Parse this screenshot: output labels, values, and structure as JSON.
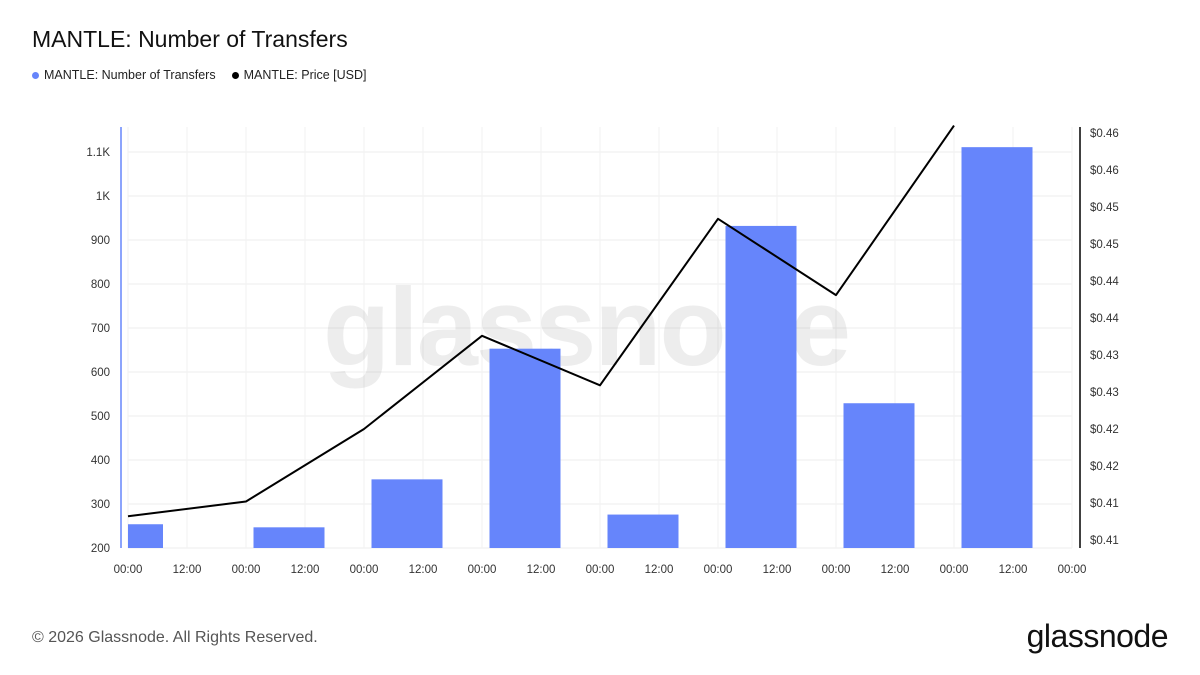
{
  "header": {
    "title": "MANTLE: Number of Transfers"
  },
  "legend": [
    {
      "label": "MANTLE: Number of Transfers",
      "color": "#6685fb"
    },
    {
      "label": "MANTLE: Price [USD]",
      "color": "#000000"
    }
  ],
  "watermark": "glassnode",
  "footer": {
    "copyright": "© 2026 Glassnode. All Rights Reserved.",
    "logo": "glassnode"
  },
  "chart_data": {
    "type": "bar",
    "title": "MANTLE: Number of Transfers",
    "x_tick_labels": [
      "00:00",
      "12:00",
      "00:00",
      "12:00",
      "00:00",
      "12:00",
      "00:00",
      "12:00",
      "00:00",
      "12:00",
      "00:00",
      "12:00",
      "00:00",
      "12:00",
      "00:00",
      "12:00",
      "00:00"
    ],
    "left_axis": {
      "ylim": [
        200,
        1150
      ],
      "ticks": [
        200,
        300,
        400,
        500,
        600,
        700,
        800,
        900,
        1000,
        1100
      ],
      "tick_labels": [
        "200",
        "300",
        "400",
        "500",
        "600",
        "700",
        "800",
        "900",
        "1K",
        "1.1K"
      ]
    },
    "right_axis": {
      "ylim": [
        0.4075,
        0.4625
      ],
      "ticks": [
        0.4075,
        0.4125,
        0.4175,
        0.4225,
        0.4275,
        0.4325,
        0.4375,
        0.4425,
        0.4475,
        0.4525,
        0.4575,
        0.4625
      ],
      "tick_labels": [
        "$0.41",
        "$0.41",
        "$0.42",
        "$0.42",
        "$0.43",
        "$0.43",
        "$0.44",
        "$0.44",
        "$0.45",
        "$0.45",
        "$0.46",
        "$0.46"
      ]
    },
    "series": [
      {
        "name": "MANTLE: Number of Transfers",
        "type": "bar",
        "color": "#6685fb",
        "x": [
          0,
          1,
          2,
          3,
          4,
          5,
          6,
          7
        ],
        "values": [
          254,
          247,
          356,
          653,
          276,
          932,
          529,
          1111
        ]
      },
      {
        "name": "MANTLE: Price [USD]",
        "type": "line",
        "color": "#000000",
        "x": [
          0,
          1,
          2,
          3,
          4,
          5,
          6,
          7
        ],
        "values": [
          0.4107,
          0.4127,
          0.4225,
          0.4351,
          0.4284,
          0.4509,
          0.4406,
          0.4635
        ]
      }
    ],
    "grid": true,
    "legend_position": "top-left"
  }
}
